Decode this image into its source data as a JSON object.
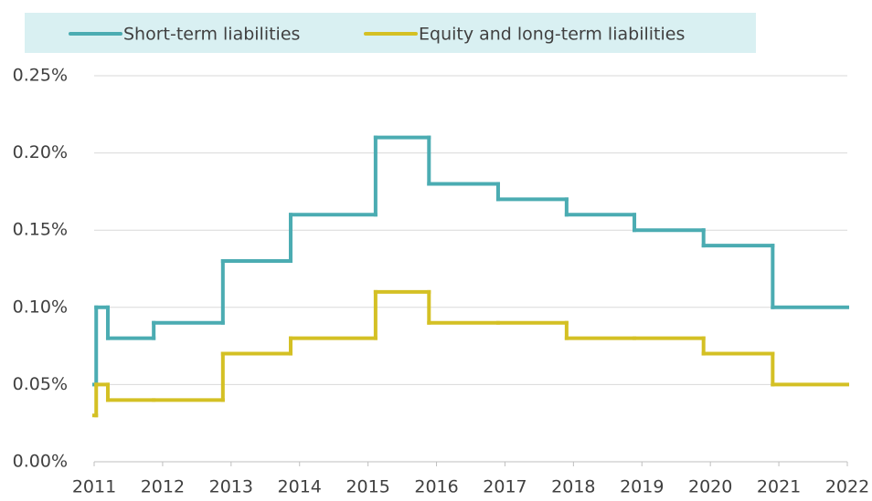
{
  "chart_data": {
    "type": "line",
    "step": "post",
    "x": [
      2011,
      2011.03,
      2011.2,
      2011.87,
      2012.88,
      2013.87,
      2015.11,
      2015.89,
      2016.9,
      2017.9,
      2018.89,
      2019.9,
      2020.91,
      2022
    ],
    "series": [
      {
        "name": "Short-term liabilities",
        "color": "#4bacb2",
        "values": [
          0.05,
          0.1,
          0.08,
          0.09,
          0.13,
          0.16,
          0.21,
          0.18,
          0.17,
          0.16,
          0.15,
          0.14,
          0.1,
          0.1
        ]
      },
      {
        "name": "Equity and long-term liabilities",
        "color": "#d4c024",
        "values": [
          0.03,
          0.05,
          0.04,
          0.04,
          0.07,
          0.08,
          0.11,
          0.09,
          0.09,
          0.08,
          0.08,
          0.07,
          0.05,
          0.05
        ]
      }
    ],
    "xlim": [
      2011,
      2022
    ],
    "xticks": [
      2011,
      2012,
      2013,
      2014,
      2015,
      2016,
      2017,
      2018,
      2019,
      2020,
      2021,
      2022
    ],
    "ylim": [
      0,
      0.25
    ],
    "yticks": [
      {
        "value": 0,
        "label": "0.00%"
      },
      {
        "value": 0.05,
        "label": "0.05%"
      },
      {
        "value": 0.1,
        "label": "0.10%"
      },
      {
        "value": 0.15,
        "label": "0.15%"
      },
      {
        "value": 0.2,
        "label": "0.20%"
      },
      {
        "value": 0.25,
        "label": "0.25%"
      }
    ],
    "grid": true,
    "legend": "top"
  }
}
